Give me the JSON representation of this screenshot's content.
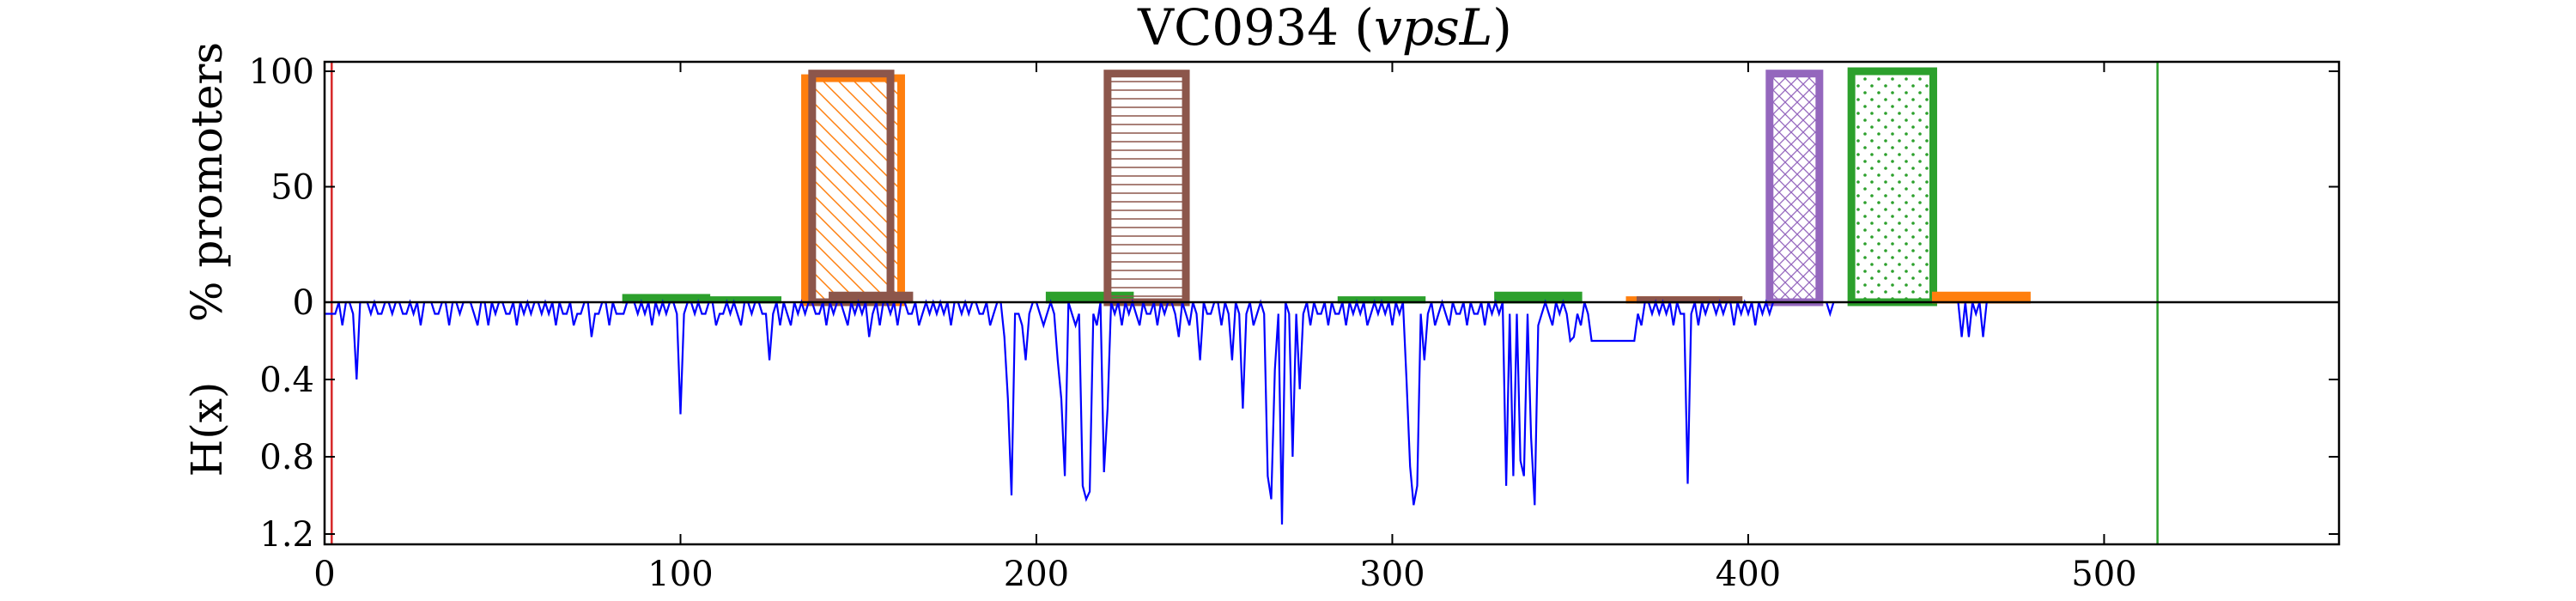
{
  "chart_data": {
    "title": "VC0934 (",
    "title_italic": "vpsL",
    "title_close": ")",
    "type": "bar",
    "x_range": [
      0,
      566
    ],
    "x_ticks": [
      "0",
      "100",
      "200",
      "300",
      "400",
      "500"
    ],
    "top_panel": {
      "ylabel": "% promoters",
      "ylim": [
        0,
        104
      ],
      "y_ticks": [
        "0",
        "50",
        "100"
      ],
      "bars": [
        {
          "x0": 84,
          "x1": 108,
          "value": 3,
          "color": "#2ca02c",
          "hatch": "none"
        },
        {
          "x0": 108,
          "x1": 128,
          "value": 2,
          "color": "#2ca02c",
          "hatch": "none"
        },
        {
          "x0": 135,
          "x1": 162,
          "value": 97,
          "color": "#ff7f0e",
          "hatch": "diag"
        },
        {
          "x0": 137,
          "x1": 159,
          "value": 99,
          "color": "#8c564b",
          "hatch": "none"
        },
        {
          "x0": 142,
          "x1": 165,
          "value": 4,
          "color": "#8c564b",
          "hatch": "none"
        },
        {
          "x0": 203,
          "x1": 227,
          "value": 4,
          "color": "#2ca02c",
          "hatch": "none"
        },
        {
          "x0": 220,
          "x1": 242,
          "value": 99,
          "color": "#8c564b",
          "hatch": "hline"
        },
        {
          "x0": 285,
          "x1": 309,
          "value": 2,
          "color": "#2ca02c",
          "hatch": "none"
        },
        {
          "x0": 329,
          "x1": 353,
          "value": 4,
          "color": "#2ca02c",
          "hatch": "none"
        },
        {
          "x0": 366,
          "x1": 398,
          "value": 2,
          "color": "#ff7f0e",
          "hatch": "none"
        },
        {
          "x0": 369,
          "x1": 398,
          "value": 2,
          "color": "#8c564b",
          "hatch": "none"
        },
        {
          "x0": 406,
          "x1": 420,
          "value": 99,
          "color": "#9467bd",
          "hatch": "cross"
        },
        {
          "x0": 429,
          "x1": 452,
          "value": 100,
          "color": "#2ca02c",
          "hatch": "dots"
        },
        {
          "x0": 452,
          "x1": 479,
          "value": 4,
          "color": "#ff7f0e",
          "hatch": "none"
        }
      ],
      "vlines": [
        {
          "x": 2,
          "color": "#d62728"
        },
        {
          "x": 515,
          "color": "#2ca02c"
        }
      ]
    },
    "bottom_panel": {
      "ylabel": "H(x)",
      "ylim": [
        0,
        1.5
      ],
      "inverted": true,
      "y_ticks": [
        "0.4",
        "0.8",
        "1.2"
      ],
      "line_color": "#0000ff",
      "series": [
        {
          "name": "",
          "x_start": 0,
          "values": [
            0.06,
            0.06,
            0.06,
            0.06,
            0.0,
            0.12,
            0.0,
            0.0,
            0.06,
            0.4,
            0.0,
            0.0,
            0.0,
            0.06,
            0.0,
            0.06,
            0.06,
            0.0,
            0.0,
            0.06,
            0.0,
            0.0,
            0.06,
            0.06,
            0.0,
            0.06,
            0.0,
            0.12,
            0.0,
            0.0,
            0.0,
            0.06,
            0.06,
            0.0,
            0.0,
            0.12,
            0.0,
            0.0,
            0.06,
            0.0,
            0.0,
            0.0,
            0.06,
            0.12,
            0.0,
            0.0,
            0.12,
            0.0,
            0.06,
            0.0,
            0.0,
            0.06,
            0.06,
            0.0,
            0.12,
            0.0,
            0.06,
            0.0,
            0.06,
            0.0,
            0.0,
            0.06,
            0.0,
            0.06,
            0.0,
            0.12,
            0.0,
            0.06,
            0.06,
            0.0,
            0.12,
            0.06,
            0.06,
            0.0,
            0.0,
            0.18,
            0.06,
            0.06,
            0.0,
            0.0,
            0.12,
            0.0,
            0.06,
            0.06,
            0.06,
            0.0,
            0.0,
            0.0,
            0.06,
            0.0,
            0.06,
            0.0,
            0.12,
            0.0,
            0.06,
            0.0,
            0.06,
            0.0,
            0.0,
            0.06,
            0.58,
            0.06,
            0.0,
            0.0,
            0.06,
            0.0,
            0.06,
            0.06,
            0.0,
            0.0,
            0.12,
            0.06,
            0.06,
            0.0,
            0.06,
            0.0,
            0.06,
            0.12,
            0.0,
            0.0,
            0.06,
            0.0,
            0.0,
            0.06,
            0.06,
            0.3,
            0.06,
            0.0,
            0.12,
            0.0,
            0.06,
            0.12,
            0.0,
            0.06,
            0.0,
            0.06,
            0.0,
            0.0,
            0.06,
            0.06,
            0.0,
            0.12,
            0.0,
            0.06,
            0.0,
            0.0,
            0.06,
            0.12,
            0.0,
            0.06,
            0.0,
            0.06,
            0.0,
            0.18,
            0.06,
            0.0,
            0.12,
            0.0,
            0.0,
            0.06,
            0.0,
            0.12,
            0.0,
            0.0,
            0.06,
            0.06,
            0.0,
            0.12,
            0.06,
            0.0,
            0.06,
            0.0,
            0.06,
            0.0,
            0.06,
            0.0,
            0.12,
            0.0,
            0.0,
            0.06,
            0.0,
            0.06,
            0.0,
            0.0,
            0.06,
            0.06,
            0.0,
            0.12,
            0.06,
            0.0,
            0.0,
            0.18,
            0.5,
            1.0,
            0.06,
            0.06,
            0.12,
            0.3,
            0.06,
            0.0,
            0.0,
            0.06,
            0.12,
            0.06,
            0.0,
            0.06,
            0.3,
            0.5,
            0.9,
            0.0,
            0.06,
            0.12,
            0.06,
            0.95,
            1.02,
            0.98,
            0.06,
            0.12,
            0.0,
            0.88,
            0.55,
            0.0,
            0.06,
            0.0,
            0.12,
            0.0,
            0.06,
            0.0,
            0.06,
            0.12,
            0.0,
            0.06,
            0.06,
            0.0,
            0.12,
            0.0,
            0.06,
            0.0,
            0.0,
            0.06,
            0.18,
            0.0,
            0.06,
            0.12,
            0.0,
            0.06,
            0.3,
            0.0,
            0.06,
            0.06,
            0.0,
            0.0,
            0.12,
            0.0,
            0.06,
            0.3,
            0.0,
            0.06,
            0.55,
            0.06,
            0.0,
            0.12,
            0.06,
            0.0,
            0.06,
            0.9,
            1.02,
            0.35,
            0.06,
            1.15,
            0.0,
            0.06,
            0.8,
            0.06,
            0.45,
            0.06,
            0.0,
            0.12,
            0.0,
            0.06,
            0.06,
            0.0,
            0.12,
            0.0,
            0.06,
            0.06,
            0.0,
            0.12,
            0.0,
            0.06,
            0.0,
            0.06,
            0.0,
            0.12,
            0.06,
            0.0,
            0.06,
            0.0,
            0.06,
            0.0,
            0.12,
            0.0,
            0.06,
            0.0,
            0.4,
            0.85,
            1.05,
            0.95,
            0.06,
            0.3,
            0.06,
            0.0,
            0.12,
            0.06,
            0.0,
            0.06,
            0.12,
            0.0,
            0.06,
            0.06,
            0.0,
            0.12,
            0.0,
            0.06,
            0.06,
            0.0,
            0.12,
            0.0,
            0.06,
            0.0,
            0.06,
            0.0,
            0.95,
            0.06,
            0.9,
            0.06,
            0.82,
            0.9,
            0.06,
            0.7,
            1.05,
            0.12,
            0.06,
            0.0,
            0.06,
            0.12,
            0.0,
            0.06,
            0.0,
            0.06,
            0.2,
            0.18,
            0.06,
            0.12,
            0.0,
            0.06,
            0.2,
            0.2,
            0.2,
            0.2,
            0.2,
            0.2,
            0.2,
            0.2,
            0.2,
            0.2,
            0.2,
            0.2,
            0.2,
            0.06,
            0.12,
            0.0,
            0.0,
            0.06,
            0.0,
            0.06,
            0.0,
            0.06,
            0.0,
            0.12,
            0.0,
            0.06,
            0.06,
            0.94,
            0.06,
            0.0,
            0.12,
            0.0,
            0.06,
            0.0,
            0.0,
            0.06,
            0.0,
            0.06,
            0.0,
            0.0,
            0.12,
            0.0,
            0.06,
            0.0,
            0.06,
            0.0,
            0.12,
            0.0,
            0.06,
            0.0,
            0.06,
            0.0
          ]
        },
        {
          "name": "",
          "x_start": 422,
          "values": [
            0.0,
            0.06,
            0.0
          ]
        },
        {
          "name": "",
          "x_start": 459,
          "values": [
            0.0,
            0.18,
            0.0,
            0.18,
            0.0,
            0.06,
            0.0,
            0.18,
            0.0
          ]
        }
      ]
    }
  }
}
